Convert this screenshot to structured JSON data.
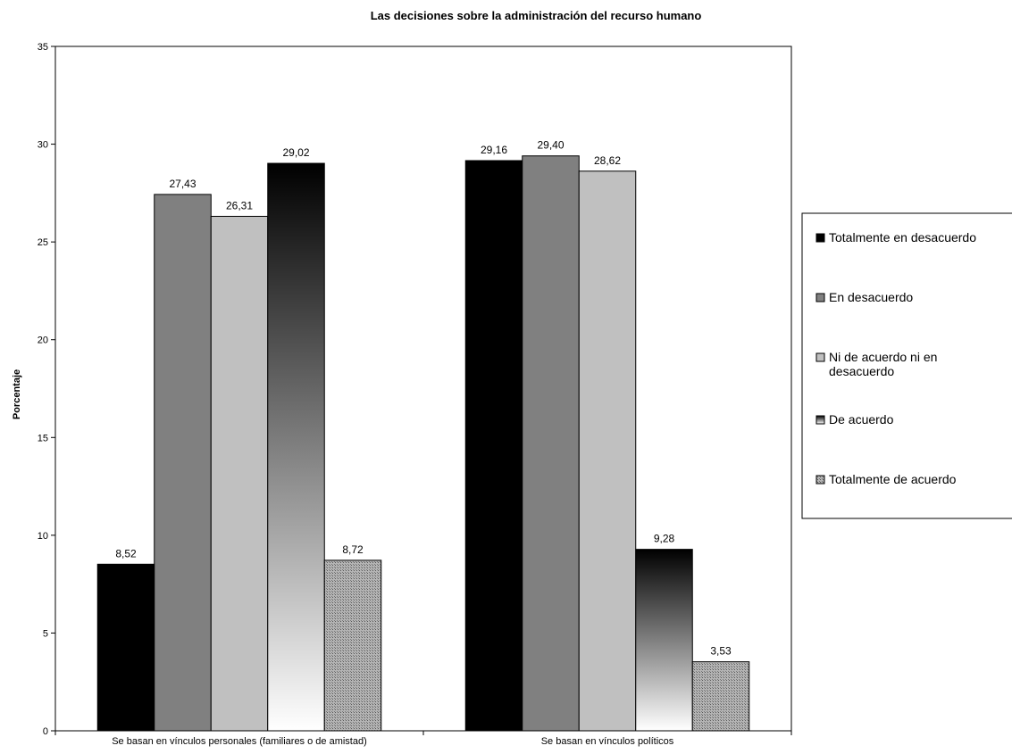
{
  "chart_data": {
    "type": "bar",
    "title": "Las decisiones sobre la administración del recurso humano",
    "xlabel": "",
    "ylabel": "Porcentaje",
    "ylim": [
      0,
      35
    ],
    "yticks": [
      0,
      5,
      10,
      15,
      20,
      25,
      30,
      35
    ],
    "grid": false,
    "legend_position": "right",
    "categories": [
      "Se basan en vínculos personales (familiares o de amistad)",
      "Se basan en vínculos políticos"
    ],
    "series": [
      {
        "name": "Totalmente en desacuerdo",
        "values": [
          8.52,
          29.16
        ],
        "labels": [
          "8,52",
          "29,16"
        ],
        "fill": "solid-black"
      },
      {
        "name": "En desacuerdo",
        "values": [
          27.43,
          29.4
        ],
        "labels": [
          "27,43",
          "29,40"
        ],
        "fill": "solid-darkgray"
      },
      {
        "name": "Ni de acuerdo ni en desacuerdo",
        "values": [
          26.31,
          28.62
        ],
        "labels": [
          "26,31",
          "28,62"
        ],
        "fill": "solid-lightgray"
      },
      {
        "name": "De acuerdo",
        "values": [
          29.02,
          9.28
        ],
        "labels": [
          "29,02",
          "9,28"
        ],
        "fill": "gradient-black-to-white"
      },
      {
        "name": "Totalmente de acuerdo",
        "values": [
          8.72,
          3.53
        ],
        "labels": [
          "8,72",
          "3,53"
        ],
        "fill": "crosshatch-gray"
      }
    ]
  },
  "colors": {
    "black": "#000000",
    "dark_gray": "#808080",
    "light_gray": "#c0c0c0",
    "gradient_top": "#000000",
    "gradient_bottom": "#ffffff",
    "hatch": "#a0a0a0"
  }
}
